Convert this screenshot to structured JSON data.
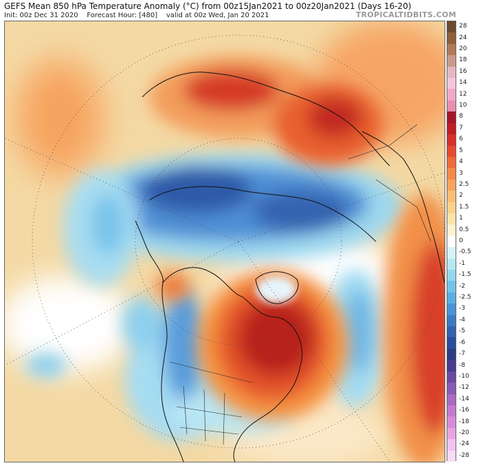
{
  "header": {
    "title": "GEFS Mean 850 hPa Temperature Anomaly (°C) from 00z15Jan2021 to 00z20Jan2021 (Days 16-20)",
    "init": "Init: 00z Dec 31 2020",
    "forecast_hour": "Forecast Hour: [480]",
    "valid": "valid at 00z Wed, Jan 20 2021",
    "brand": "TROPICALTIDBITS.COM"
  },
  "colorbar": {
    "labels": [
      "28",
      "24",
      "20",
      "18",
      "16",
      "14",
      "12",
      "10",
      "8",
      "7",
      "6",
      "5",
      "4",
      "3",
      "2.5",
      "2",
      "1.5",
      "1",
      "0.5",
      "0",
      "-0.5",
      "-1",
      "-1.5",
      "-2",
      "-2.5",
      "-3",
      "-4",
      "-5",
      "-6",
      "-7",
      "-8",
      "-10",
      "-12",
      "-14",
      "-16",
      "-18",
      "-20",
      "-24",
      "-28"
    ],
    "colors": [
      "#6b4a2e",
      "#8e5f3a",
      "#b07a5a",
      "#c99a8a",
      "#e3b8c3",
      "#f3c6dc",
      "#f0a8c8",
      "#e88fb2",
      "#a4162a",
      "#c01d25",
      "#d8302a",
      "#e84a30",
      "#f06a3a",
      "#f58a4a",
      "#f9a35c",
      "#fbbd72",
      "#fcd18c",
      "#fde3a8",
      "#fef2d0",
      "#ffffff",
      "#d6f3f7",
      "#b6e8f2",
      "#93d8ee",
      "#72c4ea",
      "#5aaee4",
      "#4a94d8",
      "#3c7ac6",
      "#3262b2",
      "#2a4c9e",
      "#2a3c86",
      "#4a3c90",
      "#6a4aa2",
      "#8a5ab4",
      "#a86ac2",
      "#c47ad0",
      "#d88ad8",
      "#e8a4e2",
      "#f2c2ee",
      "#f8dcf6"
    ]
  },
  "map": {
    "description_icon": "polar-stereographic-anomaly-map",
    "colors": {
      "warm_dark": "#b51e22",
      "warm": "#e8532e",
      "warm_light": "#f7a35f",
      "neutral_warm": "#f6d9a6",
      "neutral": "#ffffff",
      "cool_light": "#9ddcf0",
      "cool": "#4a94d8",
      "cool_dark": "#2a4c9e"
    }
  }
}
